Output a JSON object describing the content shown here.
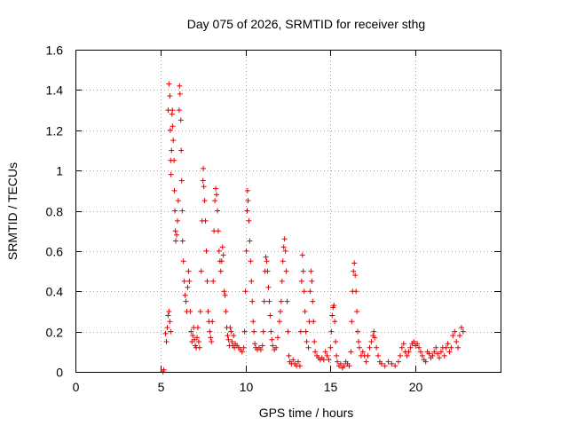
{
  "chart_data": {
    "type": "scatter",
    "title": "Day 075 of 2026, SRMTID for receiver sthg",
    "xlabel": "GPS time / hours",
    "ylabel": "SRMTID / TECUs",
    "xlim": [
      0,
      25
    ],
    "ylim": [
      0,
      1.6
    ],
    "x_ticks": [
      0,
      5,
      10,
      15,
      20
    ],
    "x_tick_labels": [
      "0",
      "5",
      "10",
      "15",
      "20"
    ],
    "y_ticks": [
      0,
      0.2,
      0.4,
      0.6,
      0.8,
      1.0,
      1.2,
      1.4,
      1.6
    ],
    "y_tick_labels": [
      "0",
      "0.2",
      "0.4",
      "0.6",
      "0.8",
      "1",
      "1.2",
      "1.4",
      "1.6"
    ],
    "grid": true,
    "marker": "plus",
    "marker_color": "#e00000",
    "series": [
      {
        "name": "SRMTID",
        "points": [
          [
            5.15,
            0.0
          ],
          [
            5.2,
            0.01
          ],
          [
            5.3,
            0.19
          ],
          [
            5.35,
            0.15
          ],
          [
            5.4,
            0.22
          ],
          [
            5.45,
            0.28
          ],
          [
            5.5,
            0.3
          ],
          [
            5.55,
            0.25
          ],
          [
            5.6,
            0.2
          ],
          [
            5.45,
            1.3
          ],
          [
            5.5,
            1.43
          ],
          [
            5.55,
            1.37
          ],
          [
            5.58,
            1.2
          ],
          [
            5.6,
            1.05
          ],
          [
            5.62,
            0.98
          ],
          [
            5.65,
            1.1
          ],
          [
            5.68,
            1.28
          ],
          [
            5.7,
            1.3
          ],
          [
            5.72,
            1.22
          ],
          [
            5.75,
            1.15
          ],
          [
            5.8,
            1.05
          ],
          [
            5.82,
            0.9
          ],
          [
            5.85,
            0.8
          ],
          [
            5.88,
            0.7
          ],
          [
            5.9,
            0.65
          ],
          [
            5.95,
            0.68
          ],
          [
            6.0,
            0.75
          ],
          [
            6.05,
            0.85
          ],
          [
            6.1,
            1.3
          ],
          [
            6.12,
            1.42
          ],
          [
            6.15,
            1.38
          ],
          [
            6.2,
            1.25
          ],
          [
            6.22,
            1.1
          ],
          [
            6.25,
            0.95
          ],
          [
            6.28,
            0.8
          ],
          [
            6.3,
            0.65
          ],
          [
            6.35,
            0.55
          ],
          [
            6.4,
            0.45
          ],
          [
            6.45,
            0.38
          ],
          [
            6.5,
            0.35
          ],
          [
            6.55,
            0.3
          ],
          [
            6.6,
            0.42
          ],
          [
            6.65,
            0.5
          ],
          [
            6.7,
            0.45
          ],
          [
            6.75,
            0.3
          ],
          [
            6.8,
            0.2
          ],
          [
            6.85,
            0.15
          ],
          [
            6.9,
            0.18
          ],
          [
            6.95,
            0.22
          ],
          [
            7.0,
            0.16
          ],
          [
            7.05,
            0.13
          ],
          [
            7.1,
            0.12
          ],
          [
            7.15,
            0.17
          ],
          [
            7.2,
            0.22
          ],
          [
            7.25,
            0.15
          ],
          [
            7.3,
            0.12
          ],
          [
            7.35,
            0.3
          ],
          [
            7.4,
            0.5
          ],
          [
            7.45,
            0.75
          ],
          [
            7.5,
            0.95
          ],
          [
            7.52,
            1.01
          ],
          [
            7.55,
            0.92
          ],
          [
            7.6,
            0.85
          ],
          [
            7.65,
            0.75
          ],
          [
            7.7,
            0.6
          ],
          [
            7.75,
            0.45
          ],
          [
            7.8,
            0.3
          ],
          [
            7.85,
            0.25
          ],
          [
            7.9,
            0.2
          ],
          [
            7.95,
            0.17
          ],
          [
            8.0,
            0.15
          ],
          [
            8.05,
            0.25
          ],
          [
            8.1,
            0.45
          ],
          [
            8.15,
            0.7
          ],
          [
            8.2,
            0.85
          ],
          [
            8.25,
            0.91
          ],
          [
            8.3,
            0.88
          ],
          [
            8.35,
            0.8
          ],
          [
            8.4,
            0.7
          ],
          [
            8.45,
            0.6
          ],
          [
            8.5,
            0.55
          ],
          [
            8.55,
            0.5
          ],
          [
            8.6,
            0.55
          ],
          [
            8.65,
            0.62
          ],
          [
            8.7,
            0.58
          ],
          [
            8.75,
            0.4
          ],
          [
            8.8,
            0.38
          ],
          [
            8.85,
            0.3
          ],
          [
            8.9,
            0.22
          ],
          [
            8.95,
            0.18
          ],
          [
            9.0,
            0.16
          ],
          [
            9.05,
            0.13
          ],
          [
            9.1,
            0.22
          ],
          [
            9.15,
            0.2
          ],
          [
            9.2,
            0.15
          ],
          [
            9.25,
            0.13
          ],
          [
            9.3,
            0.18
          ],
          [
            9.35,
            0.12
          ],
          [
            9.4,
            0.14
          ],
          [
            9.5,
            0.13
          ],
          [
            9.6,
            0.12
          ],
          [
            9.7,
            0.11
          ],
          [
            9.8,
            0.1
          ],
          [
            9.9,
            0.12
          ],
          [
            9.95,
            0.2
          ],
          [
            10.0,
            0.4
          ],
          [
            10.05,
            0.6
          ],
          [
            10.1,
            0.8
          ],
          [
            10.12,
            0.9
          ],
          [
            10.15,
            0.85
          ],
          [
            10.2,
            0.75
          ],
          [
            10.25,
            0.65
          ],
          [
            10.3,
            0.55
          ],
          [
            10.35,
            0.45
          ],
          [
            10.4,
            0.35
          ],
          [
            10.45,
            0.25
          ],
          [
            10.5,
            0.2
          ],
          [
            10.55,
            0.14
          ],
          [
            10.6,
            0.12
          ],
          [
            10.7,
            0.11
          ],
          [
            10.8,
            0.12
          ],
          [
            10.9,
            0.11
          ],
          [
            11.0,
            0.13
          ],
          [
            11.05,
            0.2
          ],
          [
            11.1,
            0.35
          ],
          [
            11.15,
            0.5
          ],
          [
            11.2,
            0.57
          ],
          [
            11.25,
            0.55
          ],
          [
            11.3,
            0.5
          ],
          [
            11.35,
            0.42
          ],
          [
            11.4,
            0.35
          ],
          [
            11.45,
            0.28
          ],
          [
            11.5,
            0.2
          ],
          [
            11.55,
            0.16
          ],
          [
            11.6,
            0.13
          ],
          [
            11.7,
            0.11
          ],
          [
            11.8,
            0.12
          ],
          [
            11.9,
            0.17
          ],
          [
            12.0,
            0.25
          ],
          [
            12.05,
            0.3
          ],
          [
            12.1,
            0.35
          ],
          [
            12.15,
            0.45
          ],
          [
            12.2,
            0.55
          ],
          [
            12.25,
            0.62
          ],
          [
            12.3,
            0.66
          ],
          [
            12.35,
            0.6
          ],
          [
            12.4,
            0.5
          ],
          [
            12.45,
            0.35
          ],
          [
            12.5,
            0.2
          ],
          [
            12.55,
            0.08
          ],
          [
            12.6,
            0.05
          ],
          [
            12.7,
            0.04
          ],
          [
            12.8,
            0.06
          ],
          [
            12.9,
            0.04
          ],
          [
            13.0,
            0.03
          ],
          [
            13.1,
            0.05
          ],
          [
            13.2,
            0.03
          ],
          [
            13.25,
            0.2
          ],
          [
            13.3,
            0.45
          ],
          [
            13.35,
            0.58
          ],
          [
            13.4,
            0.5
          ],
          [
            13.45,
            0.4
          ],
          [
            13.5,
            0.3
          ],
          [
            13.55,
            0.2
          ],
          [
            13.6,
            0.15
          ],
          [
            13.7,
            0.12
          ],
          [
            13.75,
            0.25
          ],
          [
            13.8,
            0.4
          ],
          [
            13.85,
            0.5
          ],
          [
            13.9,
            0.45
          ],
          [
            13.95,
            0.35
          ],
          [
            14.0,
            0.25
          ],
          [
            14.05,
            0.15
          ],
          [
            14.1,
            0.1
          ],
          [
            14.2,
            0.08
          ],
          [
            14.3,
            0.07
          ],
          [
            14.4,
            0.06
          ],
          [
            14.5,
            0.07
          ],
          [
            14.6,
            0.06
          ],
          [
            14.7,
            0.1
          ],
          [
            14.8,
            0.08
          ],
          [
            14.9,
            0.06
          ],
          [
            15.0,
            0.12
          ],
          [
            15.05,
            0.2
          ],
          [
            15.1,
            0.28
          ],
          [
            15.15,
            0.32
          ],
          [
            15.2,
            0.33
          ],
          [
            15.25,
            0.25
          ],
          [
            15.3,
            0.15
          ],
          [
            15.35,
            0.08
          ],
          [
            15.4,
            0.05
          ],
          [
            15.5,
            0.03
          ],
          [
            15.6,
            0.04
          ],
          [
            15.7,
            0.02
          ],
          [
            15.8,
            0.03
          ],
          [
            15.9,
            0.05
          ],
          [
            16.0,
            0.04
          ],
          [
            16.1,
            0.03
          ],
          [
            16.2,
            0.1
          ],
          [
            16.25,
            0.25
          ],
          [
            16.3,
            0.4
          ],
          [
            16.35,
            0.5
          ],
          [
            16.4,
            0.54
          ],
          [
            16.45,
            0.48
          ],
          [
            16.5,
            0.4
          ],
          [
            16.55,
            0.3
          ],
          [
            16.6,
            0.2
          ],
          [
            16.65,
            0.15
          ],
          [
            16.7,
            0.12
          ],
          [
            16.8,
            0.08
          ],
          [
            16.9,
            0.1
          ],
          [
            17.0,
            0.08
          ],
          [
            17.1,
            0.05
          ],
          [
            17.2,
            0.08
          ],
          [
            17.3,
            0.12
          ],
          [
            17.4,
            0.15
          ],
          [
            17.5,
            0.18
          ],
          [
            17.55,
            0.2
          ],
          [
            17.6,
            0.17
          ],
          [
            17.7,
            0.12
          ],
          [
            17.8,
            0.08
          ],
          [
            17.9,
            0.05
          ],
          [
            18.0,
            0.04
          ],
          [
            18.2,
            0.03
          ],
          [
            18.4,
            0.05
          ],
          [
            18.6,
            0.04
          ],
          [
            18.8,
            0.03
          ],
          [
            19.0,
            0.05
          ],
          [
            19.1,
            0.08
          ],
          [
            19.2,
            0.12
          ],
          [
            19.3,
            0.14
          ],
          [
            19.4,
            0.1
          ],
          [
            19.5,
            0.08
          ],
          [
            19.6,
            0.1
          ],
          [
            19.7,
            0.12
          ],
          [
            19.8,
            0.14
          ],
          [
            19.9,
            0.15
          ],
          [
            20.0,
            0.13
          ],
          [
            20.1,
            0.14
          ],
          [
            20.2,
            0.12
          ],
          [
            20.3,
            0.1
          ],
          [
            20.4,
            0.08
          ],
          [
            20.5,
            0.06
          ],
          [
            20.6,
            0.05
          ],
          [
            20.7,
            0.1
          ],
          [
            20.8,
            0.09
          ],
          [
            20.9,
            0.07
          ],
          [
            21.0,
            0.08
          ],
          [
            21.1,
            0.1
          ],
          [
            21.2,
            0.12
          ],
          [
            21.3,
            0.09
          ],
          [
            21.4,
            0.07
          ],
          [
            21.5,
            0.1
          ],
          [
            21.6,
            0.12
          ],
          [
            21.7,
            0.08
          ],
          [
            21.8,
            0.12
          ],
          [
            21.9,
            0.14
          ],
          [
            22.0,
            0.1
          ],
          [
            22.1,
            0.12
          ],
          [
            22.2,
            0.18
          ],
          [
            22.3,
            0.2
          ],
          [
            22.4,
            0.15
          ],
          [
            22.5,
            0.12
          ],
          [
            22.6,
            0.18
          ],
          [
            22.7,
            0.22
          ],
          [
            22.8,
            0.2
          ]
        ]
      }
    ]
  }
}
